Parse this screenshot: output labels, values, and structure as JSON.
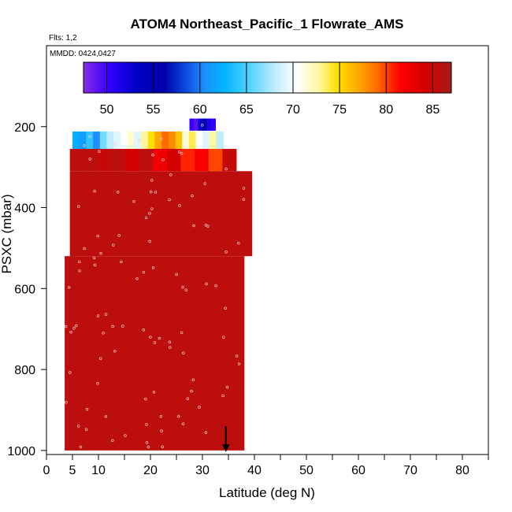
{
  "chart_data": {
    "type": "heatmap",
    "title": "ATOM4 Northeast_Pacific_1 Flowrate_AMS",
    "flights_label": "Flts: 1,2",
    "mmdd_label": "MMDD: 0424,0427",
    "xlabel": "Latitude (deg N)",
    "ylabel": "PSXC (mbar)",
    "xlim": [
      0,
      85
    ],
    "ylim": [
      1010,
      0
    ],
    "xticks": [
      "0",
      "5",
      "10",
      "20",
      "30",
      "40",
      "50",
      "60",
      "70",
      "80"
    ],
    "xtick_values": [
      0,
      5,
      10,
      20,
      30,
      40,
      50,
      60,
      70,
      80
    ],
    "yticks": [
      "200",
      "400",
      "600",
      "800",
      "1000"
    ],
    "ytick_values": [
      200,
      400,
      600,
      800,
      1000
    ],
    "colorbar": {
      "range": [
        47.5,
        87
      ],
      "ticks": [
        "50",
        "55",
        "60",
        "65",
        "70",
        "75",
        "80",
        "85"
      ],
      "tick_values": [
        50,
        55,
        60,
        65,
        70,
        75,
        80,
        85
      ]
    },
    "marker": {
      "latitude": 34.5,
      "symbol": "downward arrow at pressure 940-1000"
    },
    "bands": [
      {
        "p_top": 180,
        "p_bottom": 210,
        "lat_min": 27.5,
        "lat_max": 32.5,
        "values": [
          50,
          49,
          52,
          55,
          51,
          50
        ]
      },
      {
        "p_top": 212,
        "p_bottom": 255,
        "lat_min": 5,
        "lat_max": 34,
        "values": [
          62,
          61,
          64,
          60,
          66,
          68,
          69,
          70,
          71,
          69,
          72,
          74,
          76,
          78,
          77,
          75,
          71,
          73,
          70,
          69,
          72,
          68
        ]
      },
      {
        "p_top": 255,
        "p_bottom": 310,
        "lat_min": 4.5,
        "lat_max": 36.5,
        "values": [
          85.5,
          85.5,
          85,
          85.5,
          84,
          85.5,
          82,
          84,
          80,
          81.5,
          79,
          85
        ]
      },
      {
        "p_top": 310,
        "p_bottom": 520,
        "lat_min": 4.5,
        "lat_max": 39.5,
        "values": [
          85.5
        ]
      },
      {
        "p_top": 520,
        "p_bottom": 1000,
        "lat_min": 3.5,
        "lat_max": 38,
        "values": [
          85.5
        ]
      }
    ]
  }
}
